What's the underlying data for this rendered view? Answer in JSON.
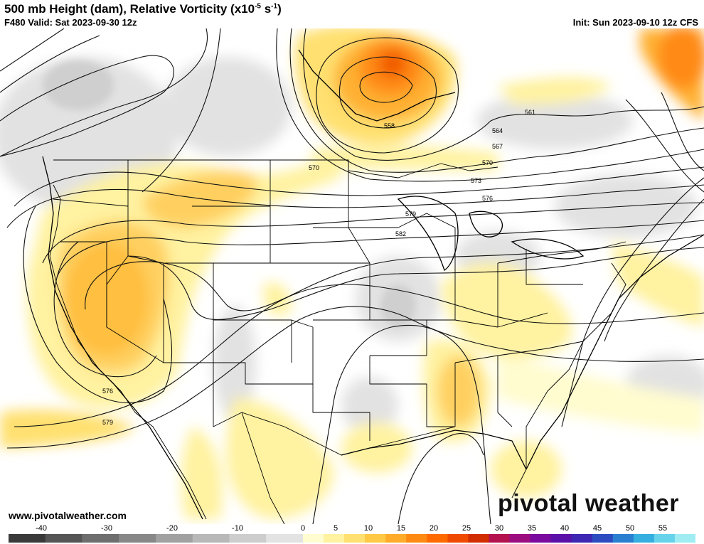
{
  "header": {
    "title": "500 mb Height (dam), Relative Vorticity (x10",
    "title_sup1": "-5",
    "title_mid": " s",
    "title_sup2": "-1",
    "title_end": ")",
    "valid": "F480 Valid: Sat 2023-09-30 12z",
    "init": "Init: Sun 2023-09-10 12z CFS"
  },
  "contour_labels": [
    "558",
    "561",
    "564",
    "567",
    "570",
    "570",
    "573",
    "576",
    "579",
    "582",
    "576",
    "579"
  ],
  "footer": {
    "website": "www.pivotalweather.com",
    "logo_left": "pivotal",
    "logo_right": "weather"
  },
  "colorbar": {
    "ticks": [
      "-40",
      "-30",
      "-20",
      "-10",
      "0",
      "5",
      "10",
      "15",
      "20",
      "25",
      "30",
      "35",
      "40",
      "45",
      "50",
      "55"
    ],
    "min_value": -45,
    "max_value": 60,
    "negative_colors": [
      "#3a3a3a",
      "#555555",
      "#6e6e6e",
      "#888888",
      "#a1a1a1",
      "#b8b8b8",
      "#cdcdcd",
      "#e3e3e3"
    ],
    "positive_colors": [
      "#fffccf",
      "#fff2a0",
      "#ffe070",
      "#ffc845",
      "#ffac2a",
      "#ff8a12",
      "#ff6a00",
      "#f04a00",
      "#d12d00",
      "#b3124f",
      "#9c0d80",
      "#7a0b9e",
      "#5a11a8",
      "#3e27b2",
      "#2d4cc0",
      "#2a7fd0",
      "#35aee0",
      "#67d3ea",
      "#a0ecf3"
    ]
  }
}
